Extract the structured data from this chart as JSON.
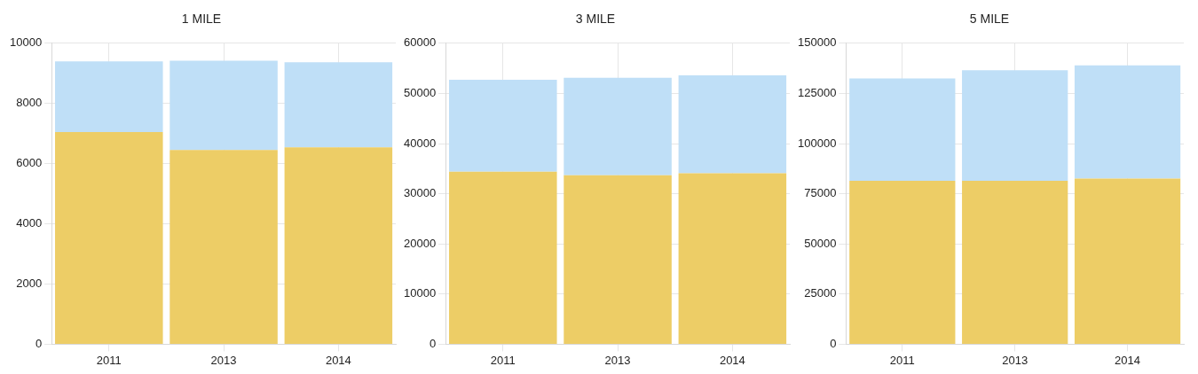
{
  "chart_data": [
    {
      "type": "bar",
      "title": "1 MILE",
      "categories": [
        "2011",
        "2013",
        "2014"
      ],
      "stacked": true,
      "grid": true,
      "ylim": [
        0,
        10000
      ],
      "yticks": [
        0,
        2000,
        4000,
        6000,
        8000,
        10000
      ],
      "series": [
        {
          "color": "#edcd66",
          "values": [
            7050,
            6450,
            6540
          ]
        },
        {
          "color": "#bfdff7",
          "values": [
            2350,
            2970,
            2830
          ]
        }
      ]
    },
    {
      "type": "bar",
      "title": "3 MILE",
      "categories": [
        "2011",
        "2013",
        "2014"
      ],
      "stacked": true,
      "grid": true,
      "ylim": [
        0,
        60000
      ],
      "yticks": [
        0,
        10000,
        20000,
        30000,
        40000,
        50000,
        60000
      ],
      "series": [
        {
          "color": "#edcd66",
          "values": [
            34400,
            33700,
            34100
          ]
        },
        {
          "color": "#bfdff7",
          "values": [
            18300,
            19400,
            19500
          ]
        }
      ]
    },
    {
      "type": "bar",
      "title": "5 MILE",
      "categories": [
        "2011",
        "2013",
        "2014"
      ],
      "stacked": true,
      "grid": true,
      "ylim": [
        0,
        150000
      ],
      "yticks": [
        0,
        25000,
        50000,
        75000,
        100000,
        125000,
        150000
      ],
      "series": [
        {
          "color": "#edcd66",
          "values": [
            81500,
            81500,
            82500
          ]
        },
        {
          "color": "#bfdff7",
          "values": [
            51000,
            55000,
            56500
          ]
        }
      ]
    }
  ]
}
